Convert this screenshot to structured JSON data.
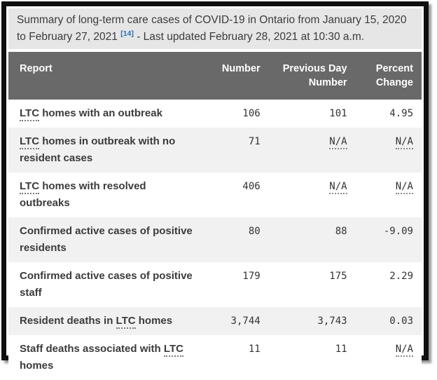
{
  "title": {
    "text_before_citation": "Summary of long-term care cases of COVID-19 in Ontario from January 15, 2020 to February 27, 2021",
    "citation": "[14]",
    "text_after_citation": " - Last updated February 28, 2021 at 10:30 a.m."
  },
  "colors": {
    "frame_border": "#0f0f0f",
    "title_bg": "#e6e6e6",
    "header_bg": "#696969",
    "stripe_bg": "#f1f1f1",
    "citation_blue": "#2a6db4",
    "text": "#3b3b3b"
  },
  "table": {
    "columns": [
      "Report",
      "Number",
      "Previous Day Number",
      "Percent Change"
    ],
    "rows": [
      {
        "label_pre": "",
        "label_abbr": "LTC",
        "label_post": " homes with an outbreak",
        "number": "106",
        "previous": "101",
        "percent": "4.95"
      },
      {
        "label_pre": "",
        "label_abbr": "LTC",
        "label_post": " homes in outbreak with no resident cases",
        "number": "71",
        "previous": "N/A",
        "percent": "N/A"
      },
      {
        "label_pre": "",
        "label_abbr": "LTC",
        "label_post": " homes with resolved outbreaks",
        "number": "406",
        "previous": "N/A",
        "percent": "N/A"
      },
      {
        "label_pre": "Confirmed active cases of positive residents",
        "label_abbr": "",
        "label_post": "",
        "number": "80",
        "previous": "88",
        "percent": "-9.09"
      },
      {
        "label_pre": "Confirmed active cases of positive staff",
        "label_abbr": "",
        "label_post": "",
        "number": "179",
        "previous": "175",
        "percent": "2.29"
      },
      {
        "label_pre": "Resident deaths in ",
        "label_abbr": "LTC",
        "label_post": " homes",
        "number": "3,744",
        "previous": "3,743",
        "percent": "0.03"
      },
      {
        "label_pre": "Staff deaths associated with ",
        "label_abbr": "LTC",
        "label_post": " homes",
        "number": "11",
        "previous": "11",
        "percent": "N/A"
      }
    ]
  }
}
